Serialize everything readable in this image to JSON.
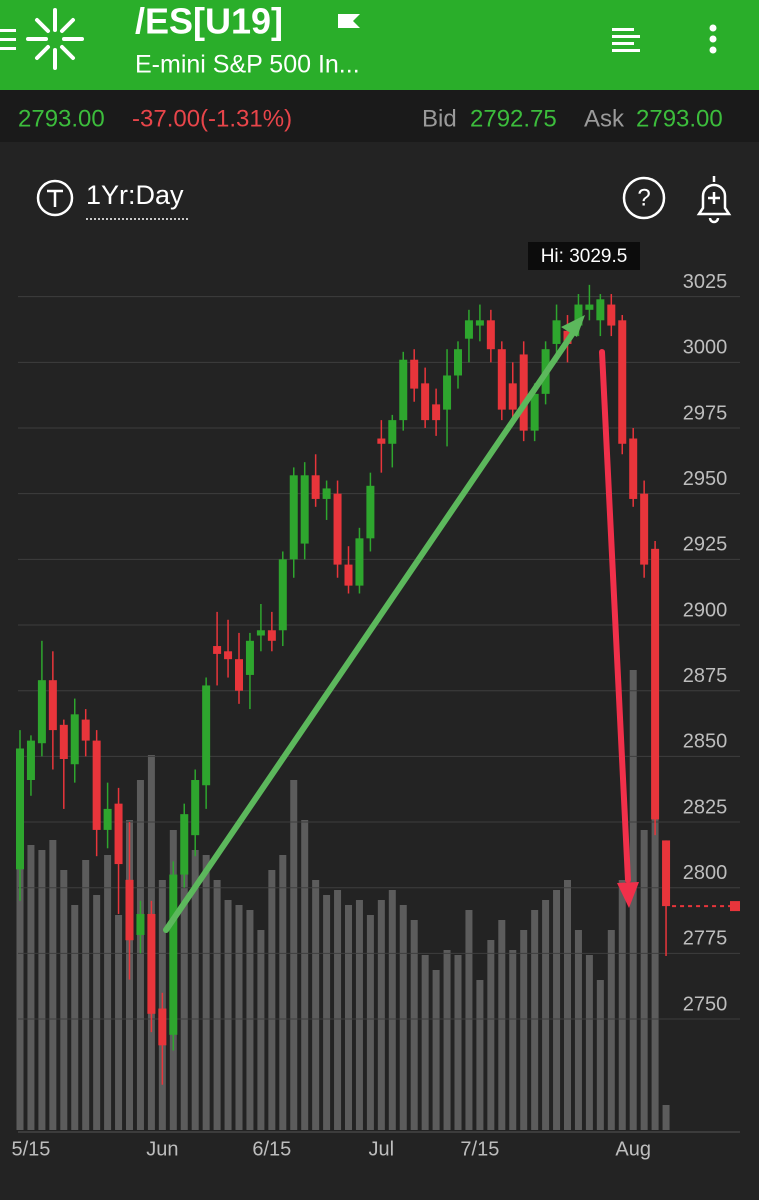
{
  "header": {
    "symbol": "/ES[U19]",
    "name": "E-mini S&P 500 In..."
  },
  "quote": {
    "last": "2793.00",
    "change": "-37.00(-1.31%)",
    "bid_label": "Bid",
    "bid": "2792.75",
    "ask_label": "Ask",
    "ask": "2793.00"
  },
  "toolbar": {
    "period": "1Yr:Day"
  },
  "chart_data": {
    "type": "candlestick",
    "annotation": "Hi: 3029.5",
    "categories": [
      null,
      "5/15",
      null,
      null,
      null,
      null,
      null,
      null,
      null,
      null,
      null,
      null,
      null,
      "Jun",
      null,
      null,
      null,
      null,
      null,
      null,
      null,
      null,
      null,
      "6/15",
      null,
      null,
      null,
      null,
      null,
      null,
      null,
      null,
      null,
      "Jul",
      null,
      null,
      null,
      null,
      null,
      null,
      null,
      null,
      "7/15",
      null,
      null,
      null,
      null,
      null,
      null,
      null,
      null,
      null,
      null,
      null,
      null,
      null,
      "Aug",
      null,
      null,
      null
    ],
    "open": [
      2807,
      2841,
      2855,
      2879,
      2862,
      2847,
      2864,
      2856,
      2822,
      2832,
      2803,
      2782,
      2790,
      2754,
      2744,
      2805,
      2820,
      2839,
      2892,
      2890,
      2887,
      2881,
      2896,
      2898,
      2898,
      2925,
      2931,
      2957,
      2948,
      2950,
      2923,
      2915,
      2933,
      2971,
      2969,
      2978,
      3001,
      2992,
      2984,
      2982,
      2995,
      3009,
      3014,
      3016,
      3005,
      2992,
      3003,
      2974,
      2988,
      3007,
      3012,
      3014,
      3020,
      3016,
      3022,
      3016,
      2971,
      2950,
      2929,
      2818
    ],
    "high": [
      2860,
      2858,
      2894,
      2890,
      2864,
      2872,
      2868,
      2860,
      2840,
      2838,
      2825,
      2795,
      2795,
      2760,
      2810,
      2832,
      2845,
      2880,
      2905,
      2902,
      2897,
      2897,
      2908,
      2905,
      2928,
      2960,
      2962,
      2965,
      2955,
      2955,
      2930,
      2937,
      2958,
      2978,
      2980,
      3004,
      3005,
      2998,
      2990,
      3005,
      3008,
      3020,
      3022,
      3020,
      3008,
      3000,
      3008,
      2992,
      3008,
      3022,
      3018,
      3026,
      3029.5,
      3026,
      3026,
      3018,
      2975,
      2955,
      2932,
      2818
    ],
    "low": [
      2795,
      2835,
      2850,
      2845,
      2830,
      2840,
      2850,
      2812,
      2815,
      2790,
      2765,
      2775,
      2745,
      2725,
      2738,
      2800,
      2812,
      2830,
      2877,
      2880,
      2870,
      2868,
      2890,
      2890,
      2892,
      2918,
      2925,
      2945,
      2940,
      2918,
      2912,
      2912,
      2928,
      2958,
      2960,
      2974,
      2985,
      2975,
      2972,
      2968,
      2990,
      3000,
      3008,
      3000,
      2978,
      2976,
      2970,
      2970,
      2984,
      3000,
      3000,
      3010,
      3016,
      3010,
      3010,
      2965,
      2945,
      2918,
      2820,
      2774
    ],
    "close": [
      2853,
      2856,
      2879,
      2860,
      2849,
      2866,
      2856,
      2822,
      2830,
      2809,
      2780,
      2790,
      2752,
      2740,
      2805,
      2828,
      2841,
      2877,
      2889,
      2887,
      2875,
      2894,
      2898,
      2894,
      2925,
      2957,
      2957,
      2948,
      2952,
      2923,
      2915,
      2933,
      2953,
      2969,
      2978,
      3001,
      2990,
      2978,
      2978,
      2995,
      3005,
      3016,
      3016,
      3005,
      2982,
      2982,
      2974,
      2988,
      3005,
      3016,
      3007,
      3022,
      3022,
      3024,
      3014,
      2969,
      2948,
      2923,
      2826,
      2793
    ],
    "volume": [
      69,
      57,
      56,
      58,
      52,
      45,
      54,
      47,
      55,
      43,
      62,
      70,
      75,
      50,
      60,
      58,
      56,
      55,
      50,
      46,
      45,
      44,
      40,
      52,
      55,
      70,
      62,
      50,
      47,
      48,
      45,
      46,
      43,
      46,
      48,
      45,
      42,
      35,
      32,
      36,
      35,
      44,
      30,
      38,
      42,
      36,
      40,
      44,
      46,
      48,
      50,
      40,
      35,
      30,
      40,
      50,
      92,
      60,
      91,
      5
    ],
    "vlim": [
      0,
      100
    ],
    "ylim": [
      2707,
      3050
    ],
    "yticks": [
      2750,
      2775,
      2800,
      2825,
      2850,
      2875,
      2900,
      2925,
      2950,
      2975,
      3000,
      3025
    ],
    "grid": true,
    "up_color": "#2ea62e",
    "down_color": "#e8353b",
    "volume_color": "#5c5c5c"
  }
}
